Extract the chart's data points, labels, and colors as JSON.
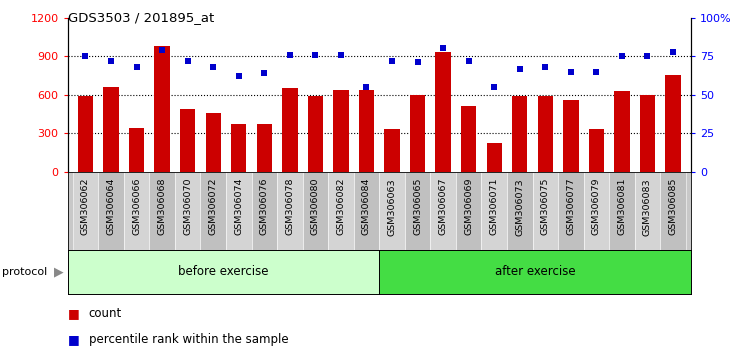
{
  "title": "GDS3503 / 201895_at",
  "categories": [
    "GSM306062",
    "GSM306064",
    "GSM306066",
    "GSM306068",
    "GSM306070",
    "GSM306072",
    "GSM306074",
    "GSM306076",
    "GSM306078",
    "GSM306080",
    "GSM306082",
    "GSM306084",
    "GSM306063",
    "GSM306065",
    "GSM306067",
    "GSM306069",
    "GSM306071",
    "GSM306073",
    "GSM306075",
    "GSM306077",
    "GSM306079",
    "GSM306081",
    "GSM306083",
    "GSM306085"
  ],
  "counts": [
    590,
    660,
    340,
    980,
    490,
    460,
    370,
    370,
    650,
    590,
    640,
    640,
    330,
    600,
    930,
    510,
    220,
    590,
    590,
    560,
    330,
    630,
    600,
    750
  ],
  "percentile_ranks": [
    75,
    72,
    68,
    79,
    72,
    68,
    62,
    64,
    76,
    76,
    76,
    55,
    72,
    71,
    80,
    72,
    55,
    67,
    68,
    65,
    65,
    75,
    75,
    78
  ],
  "n_before": 12,
  "n_after": 12,
  "bar_color": "#cc0000",
  "dot_color": "#0000cc",
  "ylim_left": [
    0,
    1200
  ],
  "ylim_right": [
    0,
    100
  ],
  "yticks_left": [
    0,
    300,
    600,
    900,
    1200
  ],
  "yticks_right": [
    0,
    25,
    50,
    75,
    100
  ],
  "grid_yvals": [
    300,
    600,
    900
  ],
  "before_bg": "#ccffcc",
  "after_bg": "#44dd44",
  "protocol_label": "protocol",
  "before_label": "before exercise",
  "after_label": "after exercise",
  "count_legend": "count",
  "pct_legend": "percentile rank within the sample",
  "bar_width": 0.6
}
